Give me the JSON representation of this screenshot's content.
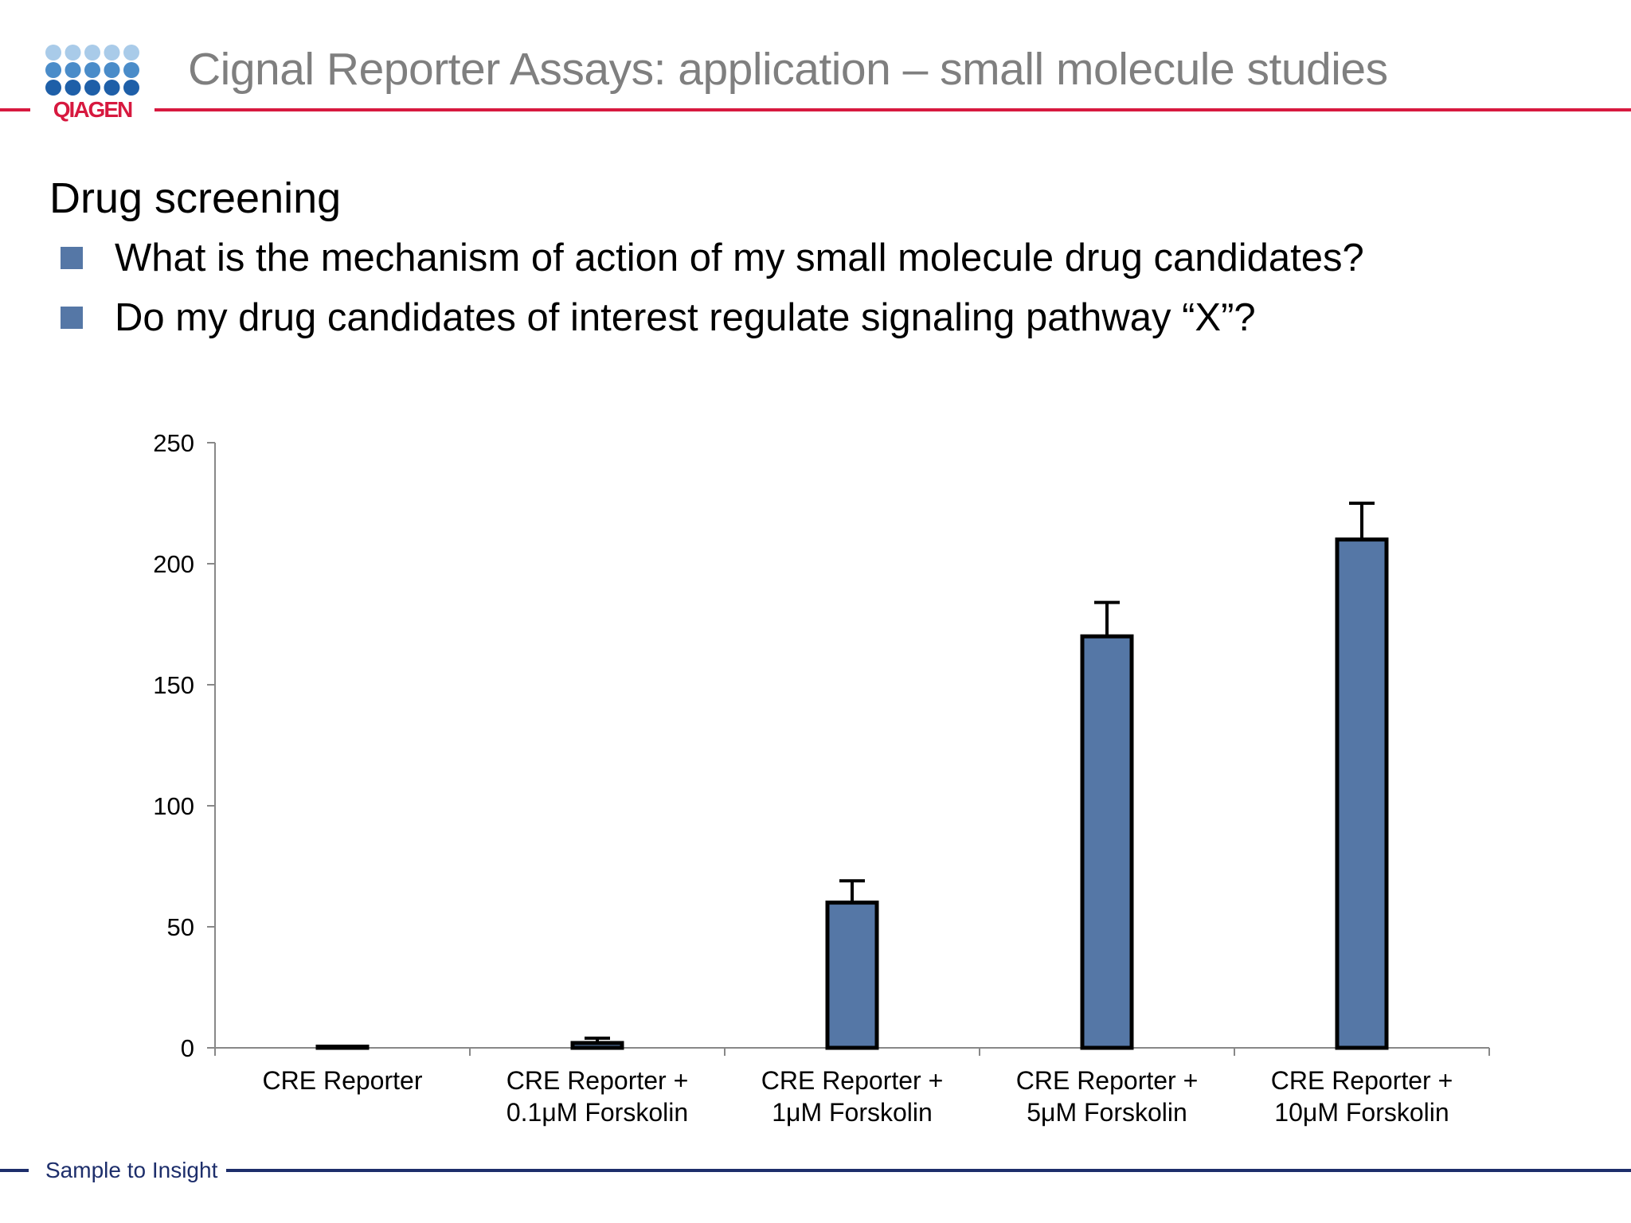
{
  "header": {
    "logo_text": "QIAGEN",
    "title": "Cignal Reporter Assays: application – small molecule studies"
  },
  "section": {
    "title": "Drug screening",
    "bullets": [
      "What is the mechanism of action of my small molecule drug candidates?",
      "Do my drug candidates of interest regulate signaling pathway “X”?"
    ]
  },
  "footer": {
    "text": "Sample to Insight"
  },
  "colors": {
    "brand_red": "#d7193f",
    "brand_navy": "#1d2e6b",
    "bar_fill": "#5577a6",
    "logo_light": "#a9cbe9",
    "logo_mid": "#4a8cc9",
    "logo_dark": "#1e5fa8"
  },
  "chart_data": {
    "type": "bar",
    "title": "",
    "xlabel": "",
    "ylabel": "",
    "categories": [
      [
        "CRE Reporter"
      ],
      [
        "CRE Reporter +",
        "0.1μM Forskolin"
      ],
      [
        "CRE Reporter +",
        "1μM Forskolin"
      ],
      [
        "CRE Reporter +",
        "5μM Forskolin"
      ],
      [
        "CRE Reporter +",
        "10μM Forskolin"
      ]
    ],
    "values": [
      0.5,
      2,
      60,
      170,
      210
    ],
    "errors": [
      0,
      2,
      9,
      14,
      15
    ],
    "ylim": [
      0,
      250
    ],
    "yticks": [
      0,
      50,
      100,
      150,
      200,
      250
    ],
    "grid": false,
    "legend": "none"
  }
}
